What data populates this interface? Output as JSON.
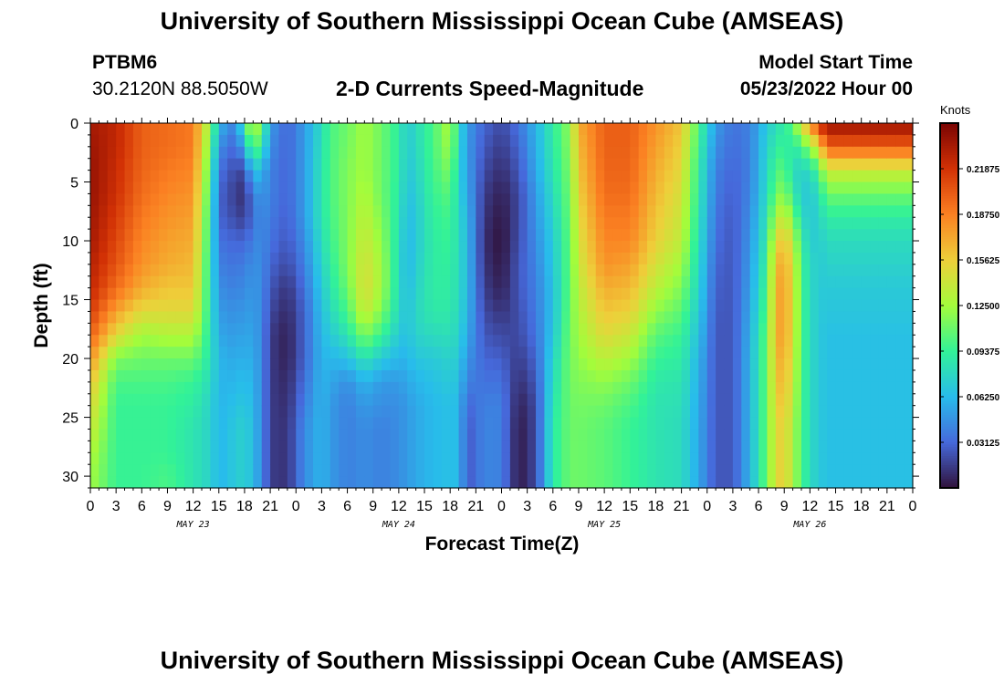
{
  "header": {
    "title": "University of Southern Mississippi Ocean Cube (AMSEAS)",
    "station": "PTBM6",
    "coords": "30.2120N  88.5050W",
    "subtitle": "2-D Currents Speed-Magnitude",
    "model_start_label": "Model Start Time",
    "model_start_value": "05/23/2022 Hour 00"
  },
  "footer": {
    "title": "University of Southern Mississippi Ocean Cube (AMSEAS)"
  },
  "chart_data": {
    "type": "heatmap",
    "title": "2-D Currents Speed-Magnitude",
    "xlabel": "Forecast Time(Z)",
    "ylabel": "Depth (ft)",
    "x_tick_labels": [
      "0",
      "3",
      "6",
      "9",
      "12",
      "15",
      "18",
      "21",
      "0",
      "3",
      "6",
      "9",
      "12",
      "15",
      "18",
      "21",
      "0",
      "3",
      "6",
      "9",
      "12",
      "15",
      "18",
      "21",
      "0",
      "3",
      "6",
      "9",
      "12",
      "15",
      "18",
      "21",
      "0"
    ],
    "date_labels": [
      "MAY 23",
      "MAY 24",
      "MAY 25",
      "MAY 26"
    ],
    "xlim_hours": [
      0,
      96
    ],
    "y_ticks": [
      0,
      5,
      10,
      15,
      20,
      25,
      30
    ],
    "ylim_ft": [
      0,
      31
    ],
    "y_inverted": true,
    "colorbar": {
      "units": "Knots",
      "tick_labels": [
        "0.21875",
        "0.18750",
        "0.15625",
        "0.12500",
        "0.09375",
        "0.06250",
        "0.03125"
      ],
      "range": [
        0,
        0.25
      ],
      "colormap": [
        "#30123b",
        "#4669db",
        "#28bceb",
        "#32f298",
        "#a4fc3b",
        "#eecf3a",
        "#fb8022",
        "#d23105",
        "#7a0403"
      ]
    },
    "depth_profile_ft": [
      0,
      2,
      4,
      6,
      8,
      10,
      12,
      14,
      16,
      18,
      20,
      22,
      24,
      26,
      28,
      30,
      31
    ],
    "speed_profiles": [
      {
        "hour": 0,
        "values": [
          0.235,
          0.238,
          0.24,
          0.24,
          0.238,
          0.235,
          0.23,
          0.225,
          0.215,
          0.2,
          0.18,
          0.16,
          0.15,
          0.14,
          0.13,
          0.125,
          0.125
        ]
      },
      {
        "hour": 3,
        "values": [
          0.225,
          0.225,
          0.222,
          0.22,
          0.215,
          0.21,
          0.205,
          0.195,
          0.175,
          0.15,
          0.115,
          0.1,
          0.095,
          0.095,
          0.095,
          0.095,
          0.095
        ]
      },
      {
        "hour": 6,
        "values": [
          0.2,
          0.2,
          0.198,
          0.195,
          0.19,
          0.185,
          0.18,
          0.17,
          0.15,
          0.125,
          0.11,
          0.1,
          0.095,
          0.095,
          0.095,
          0.095,
          0.095
        ]
      },
      {
        "hour": 9,
        "values": [
          0.195,
          0.195,
          0.19,
          0.185,
          0.18,
          0.175,
          0.17,
          0.16,
          0.15,
          0.13,
          0.11,
          0.1,
          0.095,
          0.095,
          0.095,
          0.1,
          0.1
        ]
      },
      {
        "hour": 12,
        "values": [
          0.19,
          0.19,
          0.185,
          0.18,
          0.175,
          0.17,
          0.165,
          0.16,
          0.15,
          0.13,
          0.11,
          0.095,
          0.09,
          0.085,
          0.085,
          0.085,
          0.085
        ]
      },
      {
        "hour": 14,
        "values": [
          0.12,
          0.11,
          0.1,
          0.095,
          0.09,
          0.088,
          0.085,
          0.085,
          0.085,
          0.085,
          0.085,
          0.08,
          0.075,
          0.075,
          0.075,
          0.075,
          0.075
        ]
      },
      {
        "hour": 15,
        "values": [
          0.06,
          0.045,
          0.035,
          0.03,
          0.03,
          0.035,
          0.04,
          0.045,
          0.05,
          0.055,
          0.06,
          0.06,
          0.06,
          0.06,
          0.06,
          0.06,
          0.06
        ]
      },
      {
        "hour": 17,
        "values": [
          0.04,
          0.03,
          0.02,
          0.015,
          0.02,
          0.03,
          0.035,
          0.04,
          0.045,
          0.05,
          0.055,
          0.06,
          0.065,
          0.07,
          0.07,
          0.07,
          0.07
        ]
      },
      {
        "hour": 18,
        "values": [
          0.1,
          0.06,
          0.02,
          0.01,
          0.015,
          0.03,
          0.04,
          0.045,
          0.05,
          0.055,
          0.06,
          0.065,
          0.07,
          0.075,
          0.075,
          0.075,
          0.075
        ]
      },
      {
        "hour": 19,
        "values": [
          0.14,
          0.11,
          0.07,
          0.04,
          0.035,
          0.04,
          0.045,
          0.048,
          0.05,
          0.052,
          0.055,
          0.058,
          0.06,
          0.062,
          0.062,
          0.062,
          0.062
        ]
      },
      {
        "hour": 20,
        "values": [
          0.11,
          0.09,
          0.06,
          0.05,
          0.045,
          0.045,
          0.045,
          0.045,
          0.045,
          0.045,
          0.045,
          0.045,
          0.045,
          0.045,
          0.045,
          0.045,
          0.045
        ]
      },
      {
        "hour": 21,
        "values": [
          0.05,
          0.045,
          0.04,
          0.04,
          0.038,
          0.035,
          0.03,
          0.025,
          0.02,
          0.015,
          0.015,
          0.015,
          0.015,
          0.015,
          0.015,
          0.015,
          0.015
        ]
      },
      {
        "hour": 23,
        "values": [
          0.03,
          0.03,
          0.03,
          0.03,
          0.028,
          0.025,
          0.02,
          0.012,
          0.008,
          0.005,
          0.005,
          0.008,
          0.01,
          0.012,
          0.012,
          0.012,
          0.012
        ]
      },
      {
        "hour": 25,
        "values": [
          0.05,
          0.05,
          0.05,
          0.05,
          0.05,
          0.045,
          0.04,
          0.035,
          0.03,
          0.03,
          0.03,
          0.035,
          0.04,
          0.045,
          0.045,
          0.045,
          0.045
        ]
      },
      {
        "hour": 27,
        "values": [
          0.08,
          0.082,
          0.085,
          0.085,
          0.085,
          0.08,
          0.075,
          0.07,
          0.065,
          0.062,
          0.06,
          0.06,
          0.06,
          0.06,
          0.06,
          0.06,
          0.06
        ]
      },
      {
        "hour": 28,
        "values": [
          0.1,
          0.1,
          0.1,
          0.1,
          0.098,
          0.095,
          0.09,
          0.085,
          0.078,
          0.07,
          0.06,
          0.055,
          0.05,
          0.05,
          0.05,
          0.05,
          0.05
        ]
      },
      {
        "hour": 30,
        "values": [
          0.11,
          0.112,
          0.115,
          0.115,
          0.115,
          0.115,
          0.115,
          0.11,
          0.1,
          0.085,
          0.065,
          0.045,
          0.04,
          0.04,
          0.04,
          0.04,
          0.04
        ]
      },
      {
        "hour": 32,
        "values": [
          0.125,
          0.125,
          0.125,
          0.13,
          0.135,
          0.14,
          0.145,
          0.148,
          0.14,
          0.115,
          0.085,
          0.06,
          0.05,
          0.045,
          0.045,
          0.045,
          0.045
        ]
      },
      {
        "hour": 34,
        "values": [
          0.11,
          0.11,
          0.11,
          0.11,
          0.115,
          0.12,
          0.125,
          0.125,
          0.115,
          0.095,
          0.07,
          0.05,
          0.045,
          0.04,
          0.04,
          0.04,
          0.04
        ]
      },
      {
        "hour": 36,
        "values": [
          0.09,
          0.09,
          0.09,
          0.088,
          0.085,
          0.082,
          0.08,
          0.08,
          0.078,
          0.07,
          0.06,
          0.05,
          0.045,
          0.045,
          0.045,
          0.045,
          0.045
        ]
      },
      {
        "hour": 37,
        "values": [
          0.07,
          0.07,
          0.068,
          0.065,
          0.062,
          0.06,
          0.06,
          0.062,
          0.065,
          0.065,
          0.06,
          0.055,
          0.05,
          0.05,
          0.05,
          0.05,
          0.05
        ]
      },
      {
        "hour": 38,
        "values": [
          0.08,
          0.078,
          0.075,
          0.072,
          0.07,
          0.07,
          0.072,
          0.075,
          0.078,
          0.075,
          0.068,
          0.06,
          0.055,
          0.055,
          0.055,
          0.055,
          0.055
        ]
      },
      {
        "hour": 40,
        "values": [
          0.1,
          0.1,
          0.098,
          0.095,
          0.092,
          0.09,
          0.09,
          0.09,
          0.088,
          0.08,
          0.07,
          0.065,
          0.062,
          0.062,
          0.062,
          0.062,
          0.062
        ]
      },
      {
        "hour": 42,
        "values": [
          0.13,
          0.125,
          0.115,
          0.105,
          0.098,
          0.095,
          0.092,
          0.09,
          0.088,
          0.082,
          0.075,
          0.07,
          0.065,
          0.065,
          0.065,
          0.065,
          0.065
        ]
      },
      {
        "hour": 43,
        "values": [
          0.08,
          0.078,
          0.075,
          0.075,
          0.078,
          0.08,
          0.08,
          0.08,
          0.078,
          0.075,
          0.07,
          0.065,
          0.062,
          0.062,
          0.062,
          0.062,
          0.062
        ]
      },
      {
        "hour": 44,
        "values": [
          0.05,
          0.05,
          0.052,
          0.055,
          0.06,
          0.062,
          0.062,
          0.062,
          0.06,
          0.055,
          0.048,
          0.04,
          0.03,
          0.025,
          0.025,
          0.025,
          0.025
        ]
      },
      {
        "hour": 46,
        "values": [
          0.03,
          0.025,
          0.02,
          0.015,
          0.012,
          0.01,
          0.012,
          0.015,
          0.02,
          0.025,
          0.03,
          0.035,
          0.04,
          0.042,
          0.042,
          0.042,
          0.042
        ]
      },
      {
        "hour": 48,
        "values": [
          0.02,
          0.015,
          0.01,
          0.005,
          0.002,
          0.0,
          0.002,
          0.005,
          0.012,
          0.02,
          0.028,
          0.035,
          0.04,
          0.04,
          0.04,
          0.04,
          0.04
        ]
      },
      {
        "hour": 50,
        "values": [
          0.035,
          0.03,
          0.025,
          0.02,
          0.02,
          0.022,
          0.025,
          0.025,
          0.022,
          0.02,
          0.015,
          0.01,
          0.005,
          0.002,
          0.002,
          0.002,
          0.002
        ]
      },
      {
        "hour": 52,
        "values": [
          0.06,
          0.058,
          0.055,
          0.05,
          0.048,
          0.045,
          0.042,
          0.04,
          0.038,
          0.035,
          0.03,
          0.025,
          0.02,
          0.02,
          0.02,
          0.02,
          0.02
        ]
      },
      {
        "hour": 54,
        "values": [
          0.09,
          0.088,
          0.085,
          0.08,
          0.075,
          0.07,
          0.068,
          0.065,
          0.065,
          0.068,
          0.075,
          0.08,
          0.085,
          0.088,
          0.088,
          0.088,
          0.088
        ]
      },
      {
        "hour": 56,
        "values": [
          0.12,
          0.118,
          0.115,
          0.112,
          0.11,
          0.108,
          0.108,
          0.108,
          0.11,
          0.112,
          0.112,
          0.112,
          0.11,
          0.11,
          0.11,
          0.11,
          0.11
        ]
      },
      {
        "hour": 57,
        "values": [
          0.17,
          0.165,
          0.16,
          0.155,
          0.15,
          0.145,
          0.14,
          0.135,
          0.13,
          0.125,
          0.12,
          0.115,
          0.112,
          0.11,
          0.11,
          0.11,
          0.11
        ]
      },
      {
        "hour": 60,
        "values": [
          0.2,
          0.2,
          0.198,
          0.195,
          0.19,
          0.185,
          0.18,
          0.17,
          0.16,
          0.15,
          0.135,
          0.12,
          0.11,
          0.105,
          0.105,
          0.105,
          0.105
        ]
      },
      {
        "hour": 63,
        "values": [
          0.2,
          0.2,
          0.198,
          0.195,
          0.19,
          0.185,
          0.175,
          0.165,
          0.155,
          0.14,
          0.125,
          0.11,
          0.1,
          0.095,
          0.095,
          0.095,
          0.095
        ]
      },
      {
        "hour": 66,
        "values": [
          0.18,
          0.175,
          0.17,
          0.165,
          0.16,
          0.155,
          0.145,
          0.135,
          0.12,
          0.105,
          0.095,
          0.088,
          0.085,
          0.085,
          0.085,
          0.085,
          0.085
        ]
      },
      {
        "hour": 69,
        "values": [
          0.16,
          0.155,
          0.15,
          0.145,
          0.14,
          0.135,
          0.125,
          0.115,
          0.105,
          0.095,
          0.09,
          0.085,
          0.082,
          0.08,
          0.08,
          0.08,
          0.08
        ]
      },
      {
        "hour": 71,
        "values": [
          0.1,
          0.095,
          0.09,
          0.088,
          0.085,
          0.082,
          0.078,
          0.075,
          0.07,
          0.065,
          0.06,
          0.058,
          0.056,
          0.055,
          0.055,
          0.055,
          0.055
        ]
      },
      {
        "hour": 73,
        "values": [
          0.05,
          0.045,
          0.04,
          0.038,
          0.035,
          0.033,
          0.03,
          0.028,
          0.026,
          0.025,
          0.025,
          0.025,
          0.025,
          0.025,
          0.025,
          0.025,
          0.025
        ]
      },
      {
        "hour": 75,
        "values": [
          0.035,
          0.033,
          0.03,
          0.028,
          0.026,
          0.025,
          0.025,
          0.025,
          0.025,
          0.025,
          0.025,
          0.025,
          0.025,
          0.025,
          0.025,
          0.025,
          0.025
        ]
      },
      {
        "hour": 77,
        "values": [
          0.04,
          0.04,
          0.04,
          0.042,
          0.045,
          0.048,
          0.05,
          0.052,
          0.055,
          0.058,
          0.06,
          0.06,
          0.06,
          0.06,
          0.06,
          0.06,
          0.06
        ]
      },
      {
        "hour": 79,
        "values": [
          0.07,
          0.075,
          0.078,
          0.08,
          0.085,
          0.09,
          0.095,
          0.1,
          0.105,
          0.11,
          0.11,
          0.11,
          0.11,
          0.11,
          0.11,
          0.11,
          0.11
        ]
      },
      {
        "hour": 80,
        "values": [
          0.08,
          0.09,
          0.1,
          0.11,
          0.13,
          0.15,
          0.165,
          0.17,
          0.17,
          0.17,
          0.165,
          0.16,
          0.155,
          0.15,
          0.15,
          0.15,
          0.15
        ]
      },
      {
        "hour": 81,
        "values": [
          0.09,
          0.095,
          0.105,
          0.12,
          0.14,
          0.16,
          0.17,
          0.175,
          0.175,
          0.175,
          0.17,
          0.165,
          0.16,
          0.155,
          0.155,
          0.155,
          0.155
        ]
      },
      {
        "hour": 82,
        "values": [
          0.105,
          0.085,
          0.08,
          0.09,
          0.115,
          0.14,
          0.15,
          0.15,
          0.15,
          0.148,
          0.145,
          0.14,
          0.135,
          0.13,
          0.13,
          0.13,
          0.13
        ]
      },
      {
        "hour": 83,
        "values": [
          0.15,
          0.1,
          0.075,
          0.072,
          0.08,
          0.09,
          0.095,
          0.098,
          0.1,
          0.1,
          0.1,
          0.1,
          0.1,
          0.1,
          0.1,
          0.1,
          0.1
        ]
      },
      {
        "hour": 84,
        "values": [
          0.18,
          0.12,
          0.08,
          0.07,
          0.07,
          0.075,
          0.08,
          0.08,
          0.08,
          0.08,
          0.08,
          0.08,
          0.08,
          0.08,
          0.08,
          0.08,
          0.08
        ]
      },
      {
        "hour": 85,
        "values": [
          0.22,
          0.15,
          0.1,
          0.08,
          0.075,
          0.07,
          0.07,
          0.07,
          0.07,
          0.07,
          0.07,
          0.07,
          0.07,
          0.07,
          0.07,
          0.07,
          0.07
        ]
      },
      {
        "hour": 86,
        "values": [
          0.24,
          0.2,
          0.14,
          0.11,
          0.09,
          0.08,
          0.075,
          0.07,
          0.068,
          0.065,
          0.065,
          0.065,
          0.065,
          0.065,
          0.065,
          0.065,
          0.065
        ]
      }
    ]
  }
}
